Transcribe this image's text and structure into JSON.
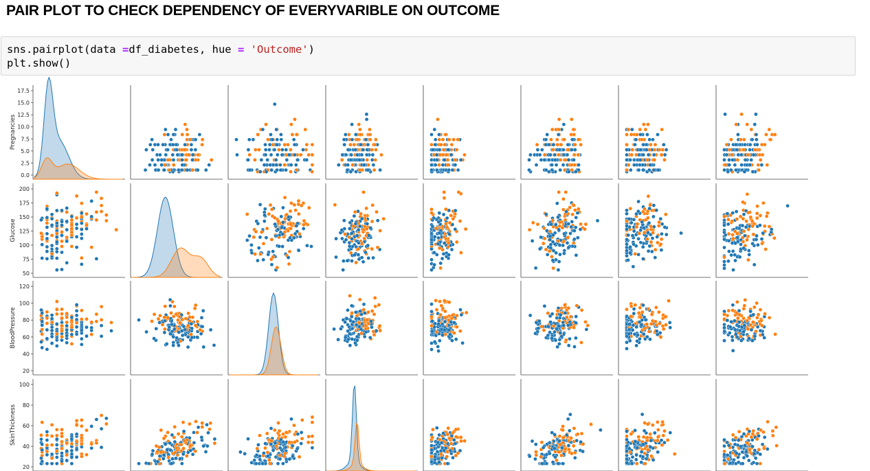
{
  "header": {
    "title": "PAIR PLOT TO CHECK DEPENDENCY OF EVERYVARIBLE ON OUTCOME"
  },
  "code": {
    "line1": {
      "a": "sns.pairplot(data ",
      "op1": "=",
      "b": "df_diabetes, hue ",
      "op2": "=",
      "c": " ",
      "str": "'Outcome'",
      "d": ")"
    },
    "line2": "plt.show()"
  },
  "colors": {
    "outcome_0": "#1f77b4",
    "outcome_1": "#ff7f0e"
  },
  "chart_data": {
    "type": "scatter",
    "hue": "Outcome",
    "rows": [
      "Pregnancies",
      "Glucose",
      "BloodPressure",
      "SkinThickness"
    ],
    "columns_visible": 8,
    "row_axes": [
      {
        "label": "Pregnancies",
        "ylim": [
          0,
          17.5
        ],
        "ticks": [
          "0.0",
          "2.5",
          "5.0",
          "7.5",
          "10.0",
          "12.5",
          "15.0",
          "17.5"
        ]
      },
      {
        "label": "Glucose",
        "ylim": [
          50,
          200
        ],
        "ticks": [
          "50",
          "75",
          "100",
          "125",
          "150",
          "175",
          "200"
        ]
      },
      {
        "label": "BloodPressure",
        "ylim": [
          20,
          120
        ],
        "ticks": [
          "20",
          "40",
          "60",
          "80",
          "100",
          "120"
        ]
      },
      {
        "label": "SkinThickness",
        "ylim": [
          20,
          100
        ],
        "ticks": [
          "20",
          "40",
          "60",
          "80",
          "100"
        ]
      }
    ]
  }
}
